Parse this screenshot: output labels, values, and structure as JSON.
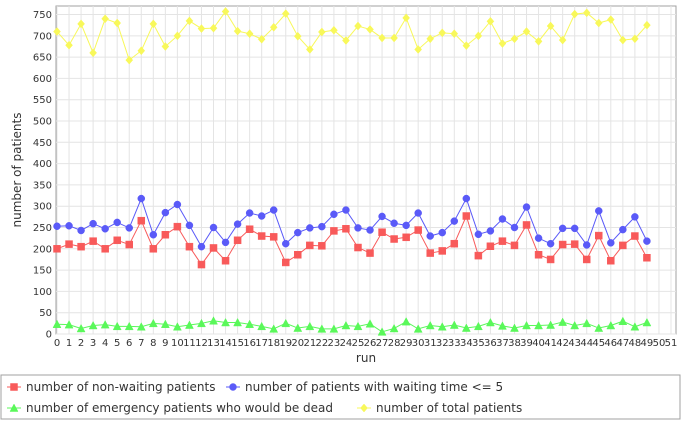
{
  "chart_data": {
    "type": "line",
    "title": "",
    "xlabel": "run",
    "ylabel": "number of patients",
    "xlim": [
      0,
      51
    ],
    "ylim": [
      0,
      770
    ],
    "x_ticks": [
      0,
      1,
      2,
      3,
      4,
      5,
      6,
      7,
      8,
      9,
      10,
      11,
      12,
      13,
      14,
      15,
      16,
      17,
      18,
      19,
      20,
      21,
      22,
      23,
      24,
      25,
      26,
      27,
      28,
      29,
      30,
      31,
      32,
      33,
      34,
      35,
      36,
      37,
      38,
      39,
      40,
      41,
      42,
      43,
      44,
      45,
      46,
      47,
      48,
      49,
      50,
      51
    ],
    "y_ticks": [
      0,
      50,
      100,
      150,
      200,
      250,
      300,
      350,
      400,
      450,
      500,
      550,
      600,
      650,
      700,
      750
    ],
    "grid": true,
    "legend_position": "bottom",
    "x": [
      0,
      1,
      2,
      3,
      4,
      5,
      6,
      7,
      8,
      9,
      10,
      11,
      12,
      13,
      14,
      15,
      16,
      17,
      18,
      19,
      20,
      21,
      22,
      23,
      24,
      25,
      26,
      27,
      28,
      29,
      30,
      31,
      32,
      33,
      34,
      35,
      36,
      37,
      38,
      39,
      40,
      41,
      42,
      43,
      44,
      45,
      46,
      47,
      48,
      49
    ],
    "series": [
      {
        "name": "number of non-waiting patients",
        "color": "#f85a5a",
        "marker": "square",
        "values": [
          200,
          211,
          205,
          218,
          200,
          220,
          210,
          266,
          200,
          233,
          252,
          205,
          163,
          202,
          172,
          220,
          246,
          230,
          228,
          168,
          186,
          208,
          207,
          242,
          247,
          203,
          190,
          239,
          223,
          227,
          244,
          190,
          195,
          212,
          277,
          184,
          206,
          218,
          208,
          256,
          186,
          175,
          210,
          211,
          175,
          231,
          172,
          208,
          230,
          179
        ]
      },
      {
        "name": "number of patients with waiting time <= 5",
        "color": "#5a5af8",
        "marker": "circle",
        "values": [
          253,
          254,
          243,
          259,
          247,
          262,
          249,
          318,
          233,
          285,
          304,
          255,
          205,
          250,
          215,
          258,
          284,
          277,
          291,
          212,
          238,
          249,
          252,
          281,
          291,
          249,
          244,
          276,
          260,
          255,
          284,
          230,
          238,
          265,
          318,
          234,
          242,
          270,
          250,
          298,
          225,
          212,
          248,
          248,
          209,
          289,
          214,
          245,
          275,
          218
        ]
      },
      {
        "name": "number of emergency patients who would be dead",
        "color": "#5af85a",
        "marker": "triangle",
        "values": [
          23,
          22,
          13,
          20,
          22,
          18,
          18,
          17,
          25,
          23,
          17,
          21,
          25,
          31,
          27,
          27,
          23,
          18,
          12,
          25,
          14,
          18,
          12,
          12,
          20,
          18,
          24,
          5,
          13,
          29,
          12,
          20,
          17,
          21,
          14,
          18,
          27,
          19,
          14,
          20,
          20,
          21,
          28,
          20,
          25,
          14,
          20,
          30,
          17,
          27
        ]
      },
      {
        "name": "number of total patients",
        "color": "#f8f85a",
        "marker": "diamond",
        "values": [
          710,
          678,
          728,
          660,
          740,
          730,
          643,
          665,
          728,
          675,
          700,
          735,
          717,
          718,
          757,
          711,
          705,
          692,
          720,
          752,
          699,
          668,
          709,
          713,
          689,
          723,
          715,
          695,
          695,
          742,
          668,
          693,
          707,
          705,
          677,
          700,
          734,
          682,
          693,
          710,
          687,
          723,
          690,
          751,
          754,
          730,
          738,
          690,
          693,
          725
        ]
      }
    ]
  }
}
